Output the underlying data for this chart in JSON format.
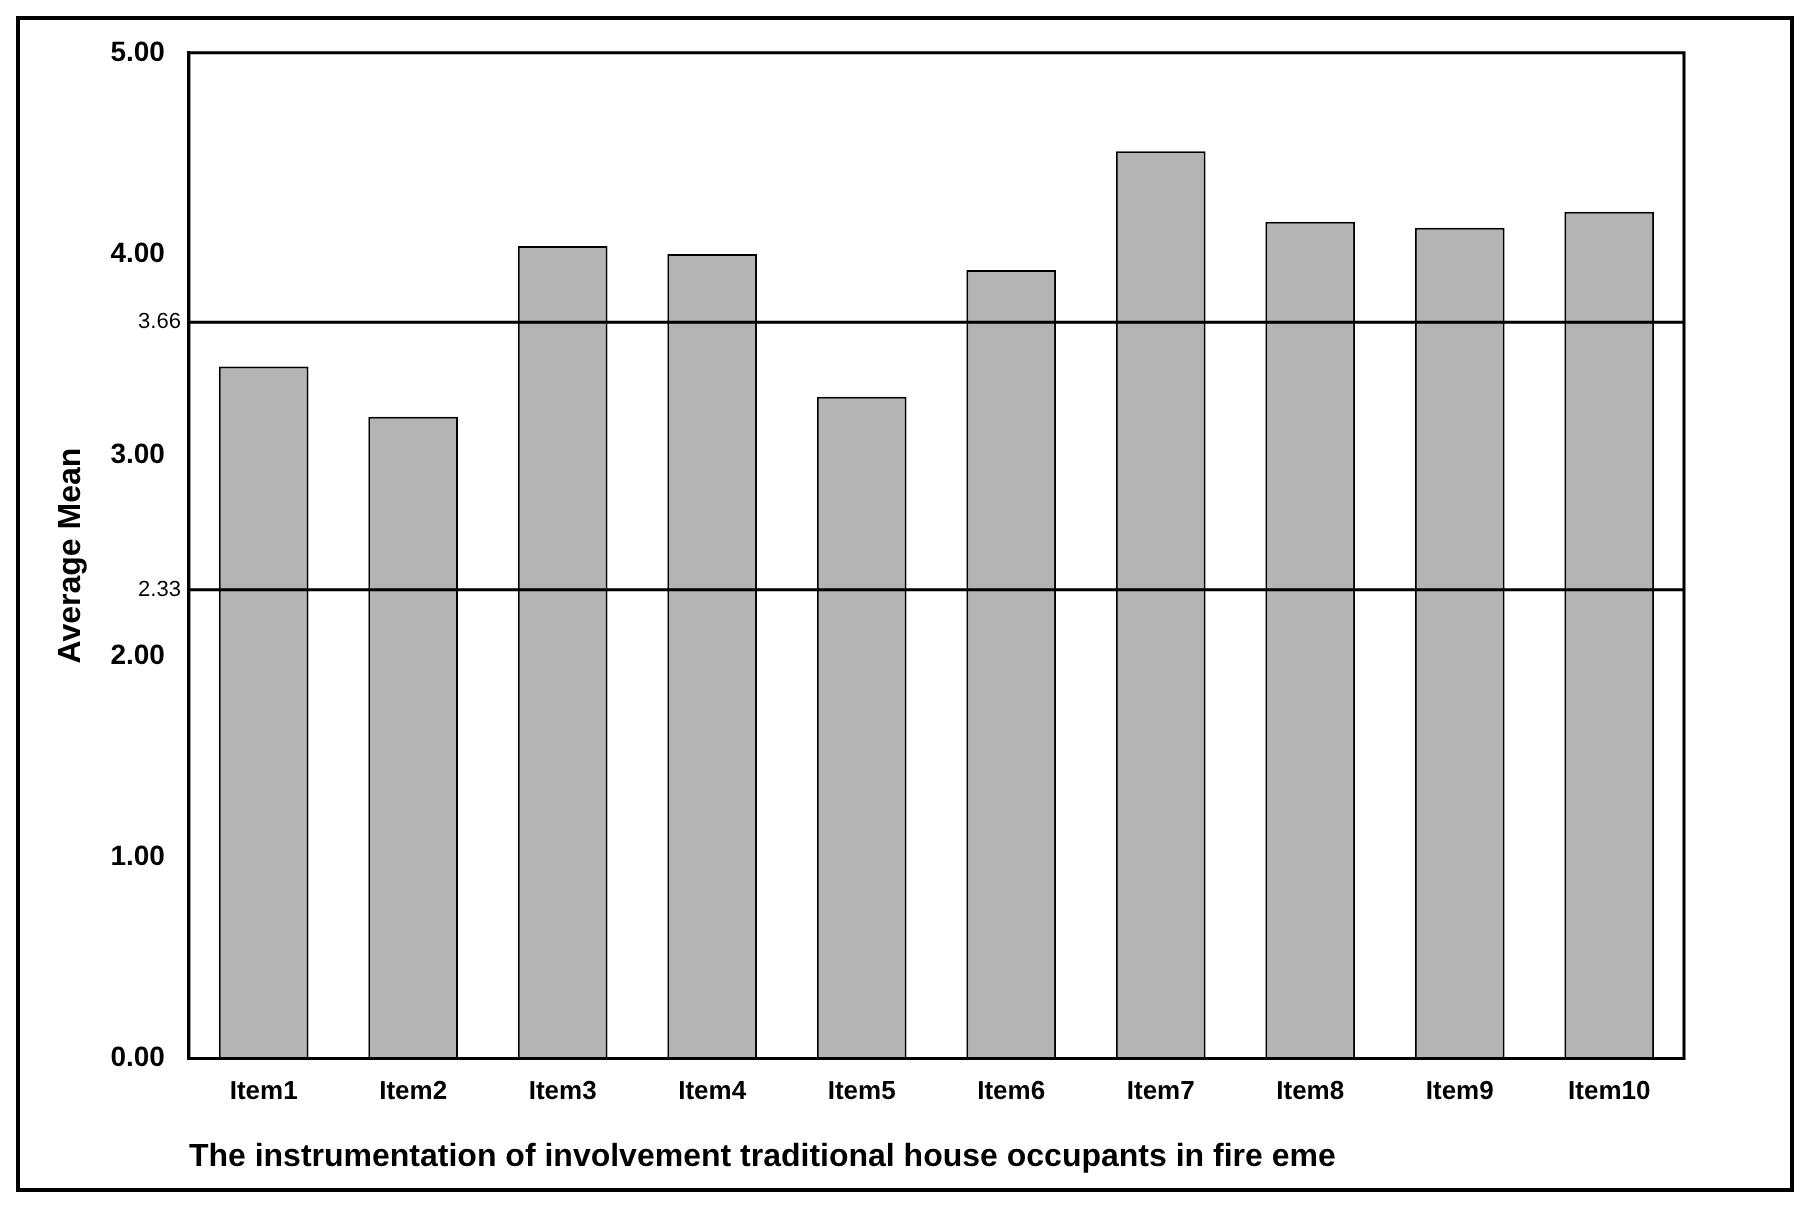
{
  "chart_data": {
    "type": "bar",
    "categories": [
      "Item1",
      "Item2",
      "Item3",
      "Item4",
      "Item5",
      "Item6",
      "Item7",
      "Item8",
      "Item9",
      "Item10"
    ],
    "values": [
      3.44,
      3.19,
      4.04,
      4.0,
      3.29,
      3.92,
      4.51,
      4.16,
      4.13,
      4.21
    ],
    "color": "#b4b4b4",
    "ylabel": "Average Mean",
    "xlabel": "The instrumentation of involvement traditional house occupants in fire eme",
    "ylim": [
      0,
      5
    ],
    "yticks": [
      {
        "value": 0,
        "label": "0.00"
      },
      {
        "value": 1,
        "label": "1.00"
      },
      {
        "value": 2,
        "label": "2.00"
      },
      {
        "value": 3,
        "label": "3.00"
      },
      {
        "value": 4,
        "label": "4.00"
      },
      {
        "value": 5,
        "label": "5.00"
      }
    ],
    "ref_lines": [
      {
        "axis": "y",
        "value": 3.66,
        "label": "3.66",
        "color": "#000000"
      },
      {
        "axis": "y",
        "value": 2.33,
        "label": "2.33",
        "color": "#000000"
      }
    ],
    "grid": false,
    "legend": false
  }
}
